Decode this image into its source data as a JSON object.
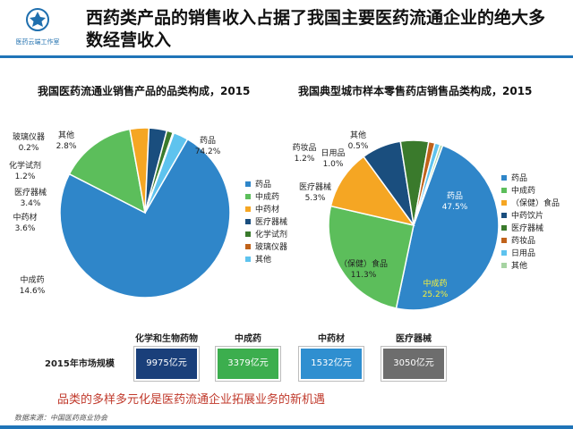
{
  "logo": {
    "text": "医药云端工作室"
  },
  "headline": "西药类产品的销售收入占据了我国主要医药流通企业的绝大多数经营收入",
  "chart_data": [
    {
      "type": "pie",
      "title": "我国医药流通业销售产品的品类构成，2015",
      "slices": [
        {
          "name": "药品",
          "value": 74.2,
          "label_pct": "74.2%",
          "color": "#2f86c9"
        },
        {
          "name": "中成药",
          "value": 14.6,
          "label_pct": "14.6%",
          "color": "#5cbe5b"
        },
        {
          "name": "中药材",
          "value": 3.6,
          "label_pct": "3.6%",
          "color": "#f5a623"
        },
        {
          "name": "医疗器械",
          "value": 3.4,
          "label_pct": "3.4%",
          "color": "#1a4e7e"
        },
        {
          "name": "化学试剂",
          "value": 1.2,
          "label_pct": "1.2%",
          "color": "#3a7a2c"
        },
        {
          "name": "玻璃仪器",
          "value": 0.2,
          "label_pct": "0.2%",
          "color": "#c0621a"
        },
        {
          "name": "其他",
          "value": 2.8,
          "label_pct": "2.8%",
          "color": "#5ec3ee"
        }
      ],
      "legend": [
        "药品",
        "中成药",
        "中药材",
        "医疗器械",
        "化学试剂",
        "玻璃仪器",
        "其他"
      ]
    },
    {
      "type": "pie",
      "title": "我国典型城市样本零售药店销售品类构成，2015",
      "slices": [
        {
          "name": "药品",
          "value": 47.5,
          "label_pct": "47.5%",
          "color": "#2f86c9"
        },
        {
          "name": "中成药",
          "value": 25.2,
          "label_pct": "25.2%",
          "color": "#5cbe5b"
        },
        {
          "name": "（保健）食品",
          "value": 11.3,
          "label_pct": "11.3%",
          "color": "#f5a623"
        },
        {
          "name": "中药饮片",
          "value": 7.5,
          "label_pct": "",
          "color": "#1a4e7e"
        },
        {
          "name": "医疗器械",
          "value": 5.3,
          "label_pct": "5.3%",
          "color": "#3a7a2c"
        },
        {
          "name": "药妆品",
          "value": 1.2,
          "label_pct": "1.2%",
          "color": "#c0621a"
        },
        {
          "name": "日用品",
          "value": 1.0,
          "label_pct": "1.0%",
          "color": "#5ec3ee"
        },
        {
          "name": "其他",
          "value": 0.5,
          "label_pct": "0.5%",
          "color": "#a6d3a2"
        }
      ],
      "legend": [
        "药品",
        "中成药",
        "（保健）食品",
        "中药饮片",
        "医疗器械",
        "药妆品",
        "日用品",
        "其他"
      ]
    },
    {
      "type": "table",
      "row_label": "2015年市场规模",
      "categories": [
        "化学和生物药物",
        "中成药",
        "中药材",
        "医疗器械"
      ],
      "values": [
        "9975亿元",
        "3379亿元",
        "1532亿元",
        "3050亿元"
      ],
      "colors": [
        "#1a3f7a",
        "#3cae4e",
        "#2f8fd0",
        "#6d6d6d"
      ]
    }
  ],
  "note": "品类的多样多元化是医药流通企业拓展业务的新机遇",
  "source": "数据来源：中国医药商业协会"
}
